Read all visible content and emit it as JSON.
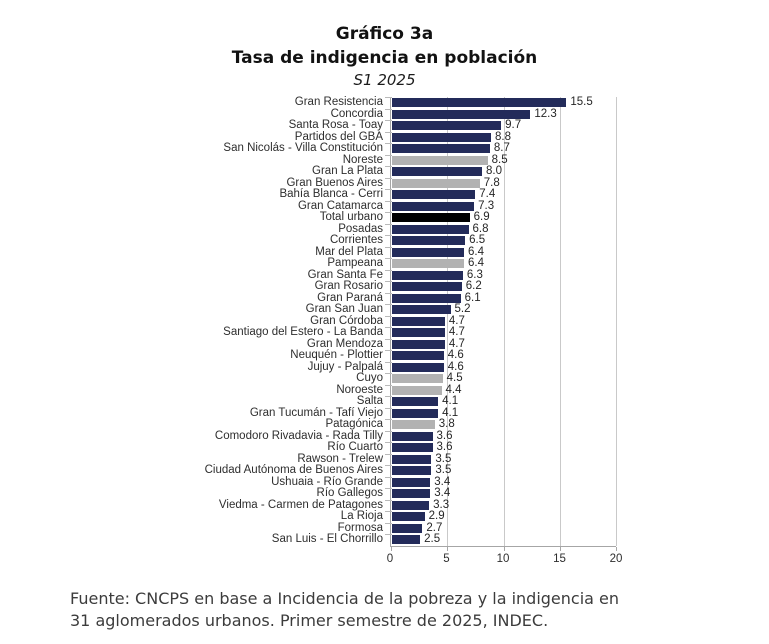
{
  "colors": {
    "aglomerado": "#232B5A",
    "region": "#B2B2B2",
    "total": "#000000",
    "gridline": "#C9C9C9",
    "axis": "#A6A6A6"
  },
  "source_note": {
    "line1": "Fuente: CNCPS en base a Incidencia de la pobreza y la indigencia en",
    "line2": "31 aglomerados urbanos. Primer semestre de 2025, INDEC."
  },
  "chart_data": {
    "type": "bar",
    "orientation": "horizontal",
    "title": "Gráfico 3a",
    "subtitle": "Tasa de indigencia en población",
    "period": "S1 2025",
    "xlabel": "",
    "ylabel": "",
    "xlim": [
      0,
      20
    ],
    "x_ticks": [
      0,
      5,
      10,
      15,
      20
    ],
    "grid": "vertical gridlines on",
    "legend": "none",
    "value_label_format": "one decimal at bar end",
    "categories": [
      "Gran Resistencia",
      "Concordia",
      "Santa Rosa - Toay",
      "Partidos del GBA",
      "San Nicolás - Villa Constitución",
      "Noreste",
      "Gran La Plata",
      "Gran Buenos Aires",
      "Bahía Blanca - Cerri",
      "Gran Catamarca",
      "Total urbano",
      "Posadas",
      "Corrientes",
      "Mar del Plata",
      "Pampeana",
      "Gran Santa Fe",
      "Gran Rosario",
      "Gran Paraná",
      "Gran San Juan",
      "Gran Córdoba",
      "Santiago del Estero - La Banda",
      "Gran Mendoza",
      "Neuquén - Plottier",
      "Jujuy - Palpalá",
      "Cuyo",
      "Noroeste",
      "Salta",
      "Gran Tucumán - Tafí Viejo",
      "Patagónica",
      "Comodoro Rivadavia - Rada Tilly",
      "Río Cuarto",
      "Rawson - Trelew",
      "Ciudad Autónoma de Buenos Aires",
      "Ushuaia - Río Grande",
      "Río Gallegos",
      "Viedma - Carmen de Patagones",
      "La Rioja",
      "Formosa",
      "San Luis - El Chorrillo"
    ],
    "values": [
      15.5,
      12.3,
      9.7,
      8.8,
      8.7,
      8.5,
      8.0,
      7.8,
      7.4,
      7.3,
      6.9,
      6.8,
      6.5,
      6.4,
      6.4,
      6.3,
      6.2,
      6.1,
      5.2,
      4.7,
      4.7,
      4.7,
      4.6,
      4.6,
      4.5,
      4.4,
      4.1,
      4.1,
      3.8,
      3.6,
      3.6,
      3.5,
      3.5,
      3.4,
      3.4,
      3.3,
      2.9,
      2.7,
      2.5
    ],
    "groups": [
      "aglomerado",
      "aglomerado",
      "aglomerado",
      "aglomerado",
      "aglomerado",
      "region",
      "aglomerado",
      "region",
      "aglomerado",
      "aglomerado",
      "total",
      "aglomerado",
      "aglomerado",
      "aglomerado",
      "region",
      "aglomerado",
      "aglomerado",
      "aglomerado",
      "aglomerado",
      "aglomerado",
      "aglomerado",
      "aglomerado",
      "aglomerado",
      "aglomerado",
      "region",
      "region",
      "aglomerado",
      "aglomerado",
      "region",
      "aglomerado",
      "aglomerado",
      "aglomerado",
      "aglomerado",
      "aglomerado",
      "aglomerado",
      "aglomerado",
      "aglomerado",
      "aglomerado",
      "aglomerado"
    ]
  }
}
